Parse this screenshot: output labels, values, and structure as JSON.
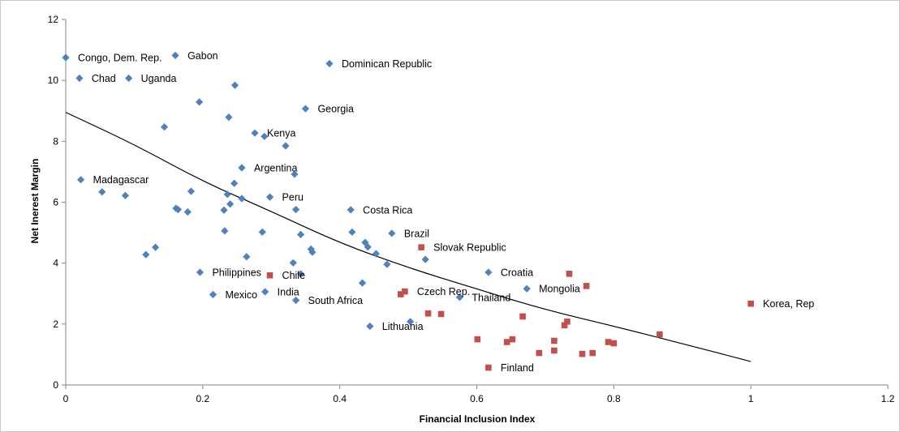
{
  "chart_data": {
    "type": "scatter",
    "title": "",
    "xlabel": "Financial Inclusion Index",
    "ylabel": "Net Inerest Margin",
    "xlim": [
      0,
      1.2
    ],
    "ylim": [
      0,
      12
    ],
    "x_ticks": [
      "0",
      "0.2",
      "0.4",
      "0.6",
      "0.8",
      "1",
      "1.2"
    ],
    "y_ticks": [
      "0",
      "2",
      "4",
      "6",
      "8",
      "10",
      "12"
    ],
    "grid": false,
    "legend": "none",
    "colors": {
      "series_a": "#4f81bd",
      "series_b": "#c0504d",
      "trend": "#000000"
    },
    "series": [
      {
        "marker": "diamond",
        "color": "#4f81bd",
        "points": [
          {
            "x": 0.0,
            "y": 10.75,
            "label": "Congo, Dem. Rep."
          },
          {
            "x": 0.16,
            "y": 10.82,
            "label": "Gabon"
          },
          {
            "x": 0.385,
            "y": 10.55,
            "label": "Dominican Republic"
          },
          {
            "x": 0.02,
            "y": 10.07,
            "label": "Chad"
          },
          {
            "x": 0.092,
            "y": 10.07,
            "label": "Uganda"
          },
          {
            "x": 0.247,
            "y": 9.84
          },
          {
            "x": 0.195,
            "y": 9.29
          },
          {
            "x": 0.35,
            "y": 9.07,
            "label": "Georgia"
          },
          {
            "x": 0.238,
            "y": 8.79
          },
          {
            "x": 0.144,
            "y": 8.47
          },
          {
            "x": 0.276,
            "y": 8.27,
            "label": "Kenya"
          },
          {
            "x": 0.29,
            "y": 8.16
          },
          {
            "x": 0.321,
            "y": 7.85
          },
          {
            "x": 0.257,
            "y": 7.13,
            "label": "Argentina"
          },
          {
            "x": 0.334,
            "y": 6.92
          },
          {
            "x": 0.022,
            "y": 6.74,
            "label": "Madagascar"
          },
          {
            "x": 0.246,
            "y": 6.62
          },
          {
            "x": 0.183,
            "y": 6.36
          },
          {
            "x": 0.053,
            "y": 6.34
          },
          {
            "x": 0.236,
            "y": 6.26
          },
          {
            "x": 0.087,
            "y": 6.22
          },
          {
            "x": 0.298,
            "y": 6.17,
            "label": "Peru"
          },
          {
            "x": 0.257,
            "y": 6.12
          },
          {
            "x": 0.24,
            "y": 5.94
          },
          {
            "x": 0.161,
            "y": 5.8
          },
          {
            "x": 0.164,
            "y": 5.76
          },
          {
            "x": 0.336,
            "y": 5.76
          },
          {
            "x": 0.416,
            "y": 5.75,
            "label": "Costa Rica"
          },
          {
            "x": 0.231,
            "y": 5.74
          },
          {
            "x": 0.178,
            "y": 5.68
          },
          {
            "x": 0.232,
            "y": 5.06
          },
          {
            "x": 0.287,
            "y": 5.02
          },
          {
            "x": 0.418,
            "y": 5.02
          },
          {
            "x": 0.476,
            "y": 4.98,
            "label": "Brazil"
          },
          {
            "x": 0.343,
            "y": 4.94
          },
          {
            "x": 0.437,
            "y": 4.68
          },
          {
            "x": 0.441,
            "y": 4.53
          },
          {
            "x": 0.131,
            "y": 4.52
          },
          {
            "x": 0.358,
            "y": 4.46
          },
          {
            "x": 0.36,
            "y": 4.36
          },
          {
            "x": 0.453,
            "y": 4.31
          },
          {
            "x": 0.117,
            "y": 4.28
          },
          {
            "x": 0.264,
            "y": 4.21
          },
          {
            "x": 0.525,
            "y": 4.12
          },
          {
            "x": 0.332,
            "y": 4.01
          },
          {
            "x": 0.469,
            "y": 3.96
          },
          {
            "x": 0.196,
            "y": 3.7,
            "label": "Philippines"
          },
          {
            "x": 0.617,
            "y": 3.7,
            "label": "Croatia"
          },
          {
            "x": 0.343,
            "y": 3.65
          },
          {
            "x": 0.433,
            "y": 3.35
          },
          {
            "x": 0.673,
            "y": 3.16,
            "label": "Mongolia"
          },
          {
            "x": 0.291,
            "y": 3.06,
            "label": "India"
          },
          {
            "x": 0.215,
            "y": 2.97,
            "label": "Mexico"
          },
          {
            "x": 0.575,
            "y": 2.88,
            "label": "Thailand"
          },
          {
            "x": 0.336,
            "y": 2.78,
            "label": "South Africa"
          },
          {
            "x": 0.503,
            "y": 2.08
          },
          {
            "x": 0.444,
            "y": 1.93,
            "label": "Lithuania"
          }
        ]
      },
      {
        "marker": "square",
        "color": "#c0504d",
        "points": [
          {
            "x": 0.519,
            "y": 4.52,
            "label": "Slovak Republic"
          },
          {
            "x": 0.735,
            "y": 3.65
          },
          {
            "x": 0.298,
            "y": 3.6,
            "label": "Chile"
          },
          {
            "x": 0.76,
            "y": 3.25
          },
          {
            "x": 0.495,
            "y": 3.07,
            "label": "Czech Rep."
          },
          {
            "x": 0.489,
            "y": 2.98
          },
          {
            "x": 1.0,
            "y": 2.67,
            "label": "Korea, Rep"
          },
          {
            "x": 0.529,
            "y": 2.35
          },
          {
            "x": 0.548,
            "y": 2.33
          },
          {
            "x": 0.667,
            "y": 2.25
          },
          {
            "x": 0.732,
            "y": 2.08
          },
          {
            "x": 0.728,
            "y": 1.96
          },
          {
            "x": 0.867,
            "y": 1.66
          },
          {
            "x": 0.601,
            "y": 1.5
          },
          {
            "x": 0.652,
            "y": 1.5
          },
          {
            "x": 0.713,
            "y": 1.45
          },
          {
            "x": 0.644,
            "y": 1.41
          },
          {
            "x": 0.792,
            "y": 1.41
          },
          {
            "x": 0.8,
            "y": 1.37
          },
          {
            "x": 0.713,
            "y": 1.13
          },
          {
            "x": 0.691,
            "y": 1.05
          },
          {
            "x": 0.769,
            "y": 1.05
          },
          {
            "x": 0.754,
            "y": 1.02
          },
          {
            "x": 0.617,
            "y": 0.57,
            "label": "Finland"
          }
        ]
      }
    ],
    "trendline": {
      "type": "exponential",
      "points": [
        {
          "x": 0.0,
          "y": 8.95
        },
        {
          "x": 0.1,
          "y": 7.9
        },
        {
          "x": 0.2,
          "y": 6.68
        },
        {
          "x": 0.3,
          "y": 5.7
        },
        {
          "x": 0.4,
          "y": 4.66
        },
        {
          "x": 0.5,
          "y": 3.85
        },
        {
          "x": 0.6,
          "y": 3.15
        },
        {
          "x": 0.7,
          "y": 2.47
        },
        {
          "x": 0.8,
          "y": 1.93
        },
        {
          "x": 0.9,
          "y": 1.36
        },
        {
          "x": 1.0,
          "y": 0.77
        }
      ]
    }
  }
}
